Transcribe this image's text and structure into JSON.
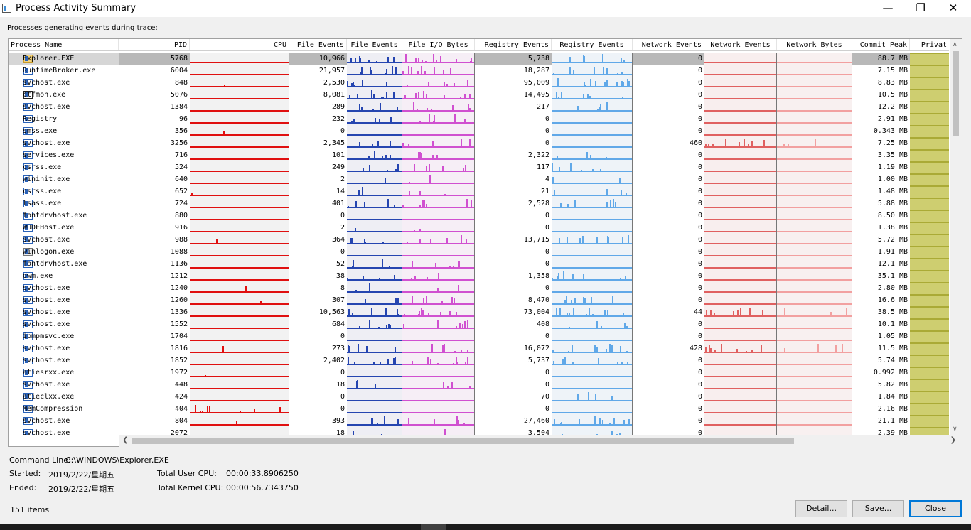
{
  "window": {
    "title": "Process Activity Summary",
    "min_icon": "minimize-icon",
    "max_icon": "restore-icon",
    "close_icon": "close-icon"
  },
  "subtitle": "Processes generating events during trace:",
  "columns": [
    "Process Name",
    "PID",
    "CPU",
    "File Events",
    "File Events",
    "File I/O Bytes",
    "Registry Events",
    "Registry Events",
    "Network Events",
    "Network Events",
    "Network Bytes",
    "Commit Peak",
    "Privat"
  ],
  "rows": [
    {
      "name": "Explorer.EXE",
      "pid": "5768",
      "file_events": "10,966",
      "registry_events": "5,738",
      "network_events": "0",
      "commit_peak": "88.7 MB",
      "icon": "folder-icon",
      "selected": true
    },
    {
      "name": "RuntimeBroker.exe",
      "pid": "6004",
      "file_events": "21,957",
      "registry_events": "18,287",
      "network_events": "0",
      "commit_peak": "7.15 MB"
    },
    {
      "name": "svchost.exe",
      "pid": "848",
      "file_events": "2,530",
      "registry_events": "95,009",
      "network_events": "0",
      "commit_peak": "8.83 MB"
    },
    {
      "name": "ctfmon.exe",
      "pid": "5076",
      "file_events": "8,081",
      "registry_events": "14,495",
      "network_events": "0",
      "commit_peak": "10.5 MB",
      "icon": "pen-icon"
    },
    {
      "name": "svchost.exe",
      "pid": "1384",
      "file_events": "289",
      "registry_events": "217",
      "network_events": "0",
      "commit_peak": "12.2 MB"
    },
    {
      "name": "Registry",
      "pid": "96",
      "file_events": "232",
      "registry_events": "0",
      "network_events": "0",
      "commit_peak": "2.91 MB"
    },
    {
      "name": "smss.exe",
      "pid": "356",
      "file_events": "0",
      "registry_events": "0",
      "network_events": "0",
      "commit_peak": "0.343 MB"
    },
    {
      "name": "svchost.exe",
      "pid": "3256",
      "file_events": "2,345",
      "registry_events": "0",
      "network_events": "460",
      "commit_peak": "7.25 MB"
    },
    {
      "name": "services.exe",
      "pid": "716",
      "file_events": "101",
      "registry_events": "2,322",
      "network_events": "0",
      "commit_peak": "3.35 MB"
    },
    {
      "name": "csrss.exe",
      "pid": "524",
      "file_events": "249",
      "registry_events": "117",
      "network_events": "0",
      "commit_peak": "1.19 MB"
    },
    {
      "name": "wininit.exe",
      "pid": "640",
      "file_events": "2",
      "registry_events": "4",
      "network_events": "0",
      "commit_peak": "1.00 MB"
    },
    {
      "name": "csrss.exe",
      "pid": "652",
      "file_events": "14",
      "registry_events": "21",
      "network_events": "0",
      "commit_peak": "1.48 MB"
    },
    {
      "name": "lsass.exe",
      "pid": "724",
      "file_events": "401",
      "registry_events": "2,528",
      "network_events": "0",
      "commit_peak": "5.88 MB"
    },
    {
      "name": "fontdrvhost.exe",
      "pid": "880",
      "file_events": "0",
      "registry_events": "0",
      "network_events": "0",
      "commit_peak": "8.50 MB"
    },
    {
      "name": "WUDFHost.exe",
      "pid": "916",
      "file_events": "2",
      "registry_events": "0",
      "network_events": "0",
      "commit_peak": "1.38 MB"
    },
    {
      "name": "svchost.exe",
      "pid": "988",
      "file_events": "364",
      "registry_events": "13,715",
      "network_events": "0",
      "commit_peak": "5.72 MB"
    },
    {
      "name": "winlogon.exe",
      "pid": "1088",
      "file_events": "0",
      "registry_events": "0",
      "network_events": "0",
      "commit_peak": "1.91 MB",
      "icon": "window-icon"
    },
    {
      "name": "fontdrvhost.exe",
      "pid": "1136",
      "file_events": "52",
      "registry_events": "0",
      "network_events": "0",
      "commit_peak": "12.1 MB"
    },
    {
      "name": "dwm.exe",
      "pid": "1212",
      "file_events": "38",
      "registry_events": "1,358",
      "network_events": "0",
      "commit_peak": "35.1 MB"
    },
    {
      "name": "svchost.exe",
      "pid": "1240",
      "file_events": "8",
      "registry_events": "0",
      "network_events": "0",
      "commit_peak": "2.80 MB"
    },
    {
      "name": "svchost.exe",
      "pid": "1260",
      "file_events": "307",
      "registry_events": "8,470",
      "network_events": "0",
      "commit_peak": "16.6 MB"
    },
    {
      "name": "svchost.exe",
      "pid": "1336",
      "file_events": "10,563",
      "registry_events": "73,004",
      "network_events": "44",
      "commit_peak": "38.5 MB"
    },
    {
      "name": "svchost.exe",
      "pid": "1552",
      "file_events": "684",
      "registry_events": "408",
      "network_events": "0",
      "commit_peak": "10.1 MB"
    },
    {
      "name": "ibmpmsvc.exe",
      "pid": "1704",
      "file_events": "0",
      "registry_events": "0",
      "network_events": "0",
      "commit_peak": "1.05 MB"
    },
    {
      "name": "svchost.exe",
      "pid": "1816",
      "file_events": "273",
      "registry_events": "16,072",
      "network_events": "428",
      "commit_peak": "11.5 MB"
    },
    {
      "name": "svchost.exe",
      "pid": "1852",
      "file_events": "2,402",
      "registry_events": "5,737",
      "network_events": "0",
      "commit_peak": "5.74 MB"
    },
    {
      "name": "atiesrxx.exe",
      "pid": "1972",
      "file_events": "0",
      "registry_events": "0",
      "network_events": "0",
      "commit_peak": "0.992 MB"
    },
    {
      "name": "svchost.exe",
      "pid": "448",
      "file_events": "18",
      "registry_events": "0",
      "network_events": "0",
      "commit_peak": "5.82 MB"
    },
    {
      "name": "atieclxx.exe",
      "pid": "424",
      "file_events": "0",
      "registry_events": "70",
      "network_events": "0",
      "commit_peak": "1.84 MB"
    },
    {
      "name": "MemCompression",
      "pid": "404",
      "file_events": "0",
      "registry_events": "0",
      "network_events": "0",
      "commit_peak": "2.16 MB"
    },
    {
      "name": "svchost.exe",
      "pid": "804",
      "file_events": "393",
      "registry_events": "27,460",
      "network_events": "0",
      "commit_peak": "21.1 MB"
    },
    {
      "name": "svchost.exe",
      "pid": "2072",
      "file_events": "18",
      "registry_events": "3,504",
      "network_events": "0",
      "commit_peak": "2.39 MB"
    }
  ],
  "details": {
    "command_line_label": "Command Line:",
    "command_line_value": "C:\\WINDOWS\\Explorer.EXE",
    "started_label": "Started:",
    "started_value": "2019/2/22/星期五",
    "ended_label": "Ended:",
    "ended_value": "2019/2/22/星期五",
    "user_cpu_label": "Total User CPU:",
    "user_cpu_value": "00:00:33.8906250",
    "kernel_cpu_label": "Total Kernel CPU:",
    "kernel_cpu_value": "00:00:56.7343750"
  },
  "status": {
    "items": "151 items"
  },
  "buttons": {
    "detail": "Detail...",
    "save": "Save...",
    "close": "Close"
  },
  "colors": {
    "cpu": "#e01010",
    "file_events": "#2545b0",
    "file_io": "#cc44cc",
    "registry": "#60a8e8",
    "network_events": "#e06060",
    "network_bytes": "#f2a0a0",
    "private": "#a8a830"
  }
}
